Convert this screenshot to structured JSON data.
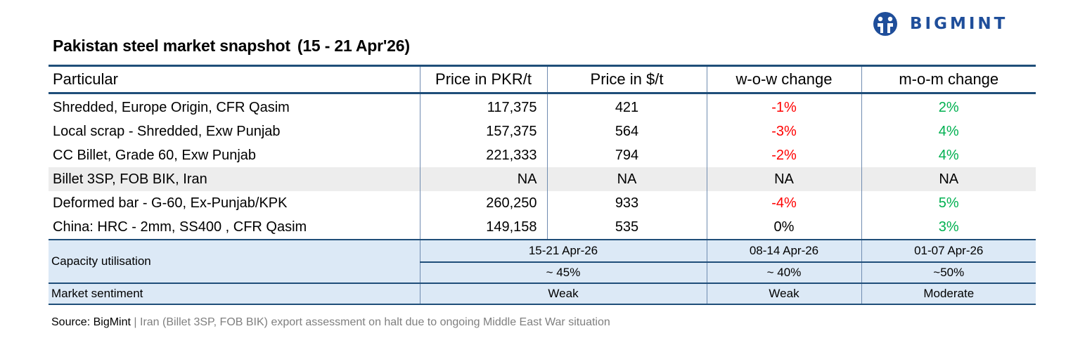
{
  "brand": {
    "name": "BIGMINT",
    "color": "#1f4e9a"
  },
  "title": {
    "main": "Pakistan steel market snapshot",
    "range": "(15 - 21 Apr'26)"
  },
  "table": {
    "headers": [
      "Particular",
      "Price in PKR/t",
      "Price in $/t",
      "w-o-w change",
      "m-o-m change"
    ],
    "rows": [
      {
        "particular": "Shredded, Europe Origin, CFR Qasim",
        "pkr": "117,375",
        "usd": "421",
        "wow": "-1%",
        "mom": "2%"
      },
      {
        "particular": "Local scrap - Shredded, Exw Punjab",
        "pkr": "157,375",
        "usd": "564",
        "wow": "-3%",
        "mom": "4%"
      },
      {
        "particular": "CC Billet, Grade 60, Exw Punjab",
        "pkr": "221,333",
        "usd": "794",
        "wow": "-2%",
        "mom": "4%"
      },
      {
        "particular": "Billet 3SP, FOB BIK, Iran",
        "pkr": "NA",
        "usd": "NA",
        "wow": "NA",
        "mom": "NA"
      },
      {
        "particular": "Deformed bar - G-60, Ex-Punjab/KPK",
        "pkr": "260,250",
        "usd": "933",
        "wow": "-4%",
        "mom": "5%"
      },
      {
        "particular": "China: HRC - 2mm, SS400 , CFR Qasim",
        "pkr": "149,158",
        "usd": "535",
        "wow": "0%",
        "mom": "3%"
      }
    ],
    "capacity": {
      "label": "Capacity utilisation",
      "periods": [
        "15-21 Apr-26",
        "08-14 Apr-26",
        "01-07 Apr-26"
      ],
      "values": [
        "~ 45%",
        "~ 40%",
        "~50%"
      ]
    },
    "sentiment": {
      "label": "Market sentiment",
      "values": [
        "Weak",
        "Weak",
        "Moderate"
      ]
    }
  },
  "colors": {
    "negative": "#ff0000",
    "positive": "#00b050",
    "header_border": "#1f4e79",
    "lower_fill": "#dce9f6",
    "shaded_row": "#ededed"
  },
  "source": {
    "label": "Source: BigMint",
    "separator": "|",
    "note": "Iran (Billet 3SP, FOB BIK) export assessment on halt due to ongoing Middle East War situation"
  }
}
